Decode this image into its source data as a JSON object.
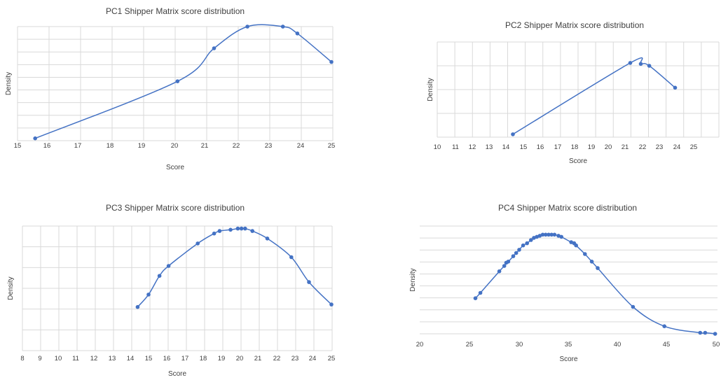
{
  "palette": {
    "series": "#4472c4",
    "grid": "#d9d9d9",
    "text": "#404040"
  },
  "chart_data": [
    {
      "type": "line",
      "title": "PC1 Shipper Matrix score distribution",
      "xlabel": "Score",
      "ylabel": "Density",
      "xticks": [
        "15",
        "16",
        "17",
        "18",
        "19",
        "20",
        "21",
        "22",
        "23",
        "24",
        "25"
      ],
      "ylim": [
        0,
        1
      ],
      "grid": true,
      "series": [
        {
          "points": [
            {
              "x": 15.6,
              "y": 0.02
            },
            {
              "x": 20.1,
              "y": 0.52
            },
            {
              "x": 21.3,
              "y": 0.81
            },
            {
              "x": 22.35,
              "y": 1.0
            },
            {
              "x": 23.45,
              "y": 1.0
            },
            {
              "x": 23.9,
              "y": 0.94
            },
            {
              "x": 25.0,
              "y": 0.69
            }
          ]
        }
      ]
    },
    {
      "type": "line",
      "title": "PC2 Shipper Matrix score distribution",
      "xlabel": "Score",
      "ylabel": "Density",
      "xticks": [
        "10",
        "11",
        "12",
        "13",
        "14",
        "15",
        "16",
        "17",
        "18",
        "19",
        "20",
        "21",
        "22",
        "23",
        "24",
        "25"
      ],
      "ylim": [
        0,
        1
      ],
      "grid": true,
      "series": [
        {
          "points": [
            {
              "x": 14.4,
              "y": 0.03
            },
            {
              "x": 21.3,
              "y": 0.78
            },
            {
              "x": 21.9,
              "y": 0.77
            },
            {
              "x": 22.4,
              "y": 0.75
            },
            {
              "x": 23.9,
              "y": 0.52
            }
          ]
        }
      ]
    },
    {
      "type": "line",
      "title": "PC3 Shipper Matrix score distribution",
      "xlabel": "Score",
      "ylabel": "Density",
      "xticks": [
        "8",
        "9",
        "10",
        "11",
        "12",
        "13",
        "14",
        "15",
        "16",
        "17",
        "18",
        "19",
        "20",
        "21",
        "22",
        "23",
        "24",
        "25"
      ],
      "ylim": [
        0,
        1
      ],
      "grid": true,
      "series": [
        {
          "points": [
            {
              "x": 14.4,
              "y": 0.35
            },
            {
              "x": 15.0,
              "y": 0.45
            },
            {
              "x": 15.6,
              "y": 0.6
            },
            {
              "x": 16.1,
              "y": 0.68
            },
            {
              "x": 17.7,
              "y": 0.86
            },
            {
              "x": 18.6,
              "y": 0.94
            },
            {
              "x": 18.9,
              "y": 0.96
            },
            {
              "x": 19.5,
              "y": 0.97
            },
            {
              "x": 19.9,
              "y": 0.98
            },
            {
              "x": 20.1,
              "y": 0.98
            },
            {
              "x": 20.3,
              "y": 0.98
            },
            {
              "x": 20.7,
              "y": 0.96
            },
            {
              "x": 21.5,
              "y": 0.9
            },
            {
              "x": 22.8,
              "y": 0.75
            },
            {
              "x": 23.8,
              "y": 0.55
            },
            {
              "x": 25.0,
              "y": 0.37
            }
          ]
        }
      ]
    },
    {
      "type": "line",
      "title": "PC4 Shipper Matrix score distribution",
      "xlabel": "Score",
      "ylabel": "Density",
      "xticks": [
        "20",
        "25",
        "30",
        "35",
        "40",
        "45",
        "50"
      ],
      "xlim": [
        20,
        50
      ],
      "ylim": [
        0,
        1
      ],
      "grid": true,
      "series": [
        {
          "points": [
            {
              "x": 25.6,
              "y": 0.33
            },
            {
              "x": 26.1,
              "y": 0.38
            },
            {
              "x": 28.0,
              "y": 0.58
            },
            {
              "x": 28.5,
              "y": 0.63
            },
            {
              "x": 28.7,
              "y": 0.66
            },
            {
              "x": 28.9,
              "y": 0.67
            },
            {
              "x": 29.4,
              "y": 0.72
            },
            {
              "x": 29.7,
              "y": 0.75
            },
            {
              "x": 30.0,
              "y": 0.78
            },
            {
              "x": 30.4,
              "y": 0.82
            },
            {
              "x": 30.8,
              "y": 0.84
            },
            {
              "x": 31.2,
              "y": 0.87
            },
            {
              "x": 31.5,
              "y": 0.89
            },
            {
              "x": 31.8,
              "y": 0.9
            },
            {
              "x": 32.1,
              "y": 0.91
            },
            {
              "x": 32.4,
              "y": 0.92
            },
            {
              "x": 32.7,
              "y": 0.92
            },
            {
              "x": 33.0,
              "y": 0.92
            },
            {
              "x": 33.3,
              "y": 0.92
            },
            {
              "x": 33.6,
              "y": 0.92
            },
            {
              "x": 34.0,
              "y": 0.91
            },
            {
              "x": 34.3,
              "y": 0.9
            },
            {
              "x": 35.3,
              "y": 0.85
            },
            {
              "x": 35.6,
              "y": 0.84
            },
            {
              "x": 35.8,
              "y": 0.82
            },
            {
              "x": 36.7,
              "y": 0.74
            },
            {
              "x": 37.4,
              "y": 0.67
            },
            {
              "x": 38.0,
              "y": 0.61
            },
            {
              "x": 41.6,
              "y": 0.25
            },
            {
              "x": 44.8,
              "y": 0.07
            },
            {
              "x": 48.4,
              "y": 0.01
            },
            {
              "x": 48.9,
              "y": 0.01
            },
            {
              "x": 49.9,
              "y": 0.0
            }
          ]
        }
      ]
    }
  ]
}
